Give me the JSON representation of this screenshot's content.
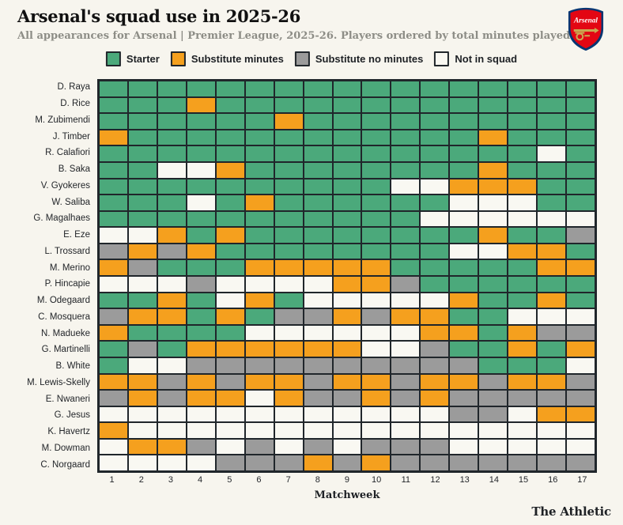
{
  "header": {
    "title": "Arsenal's squad use in 2025-26",
    "subtitle": "All appearances for Arsenal | Premier League, 2025-26. Players ordered by total minutes played"
  },
  "logo": {
    "icon": "arsenal-crest-icon",
    "text": "Arsenal"
  },
  "legend": [
    {
      "code": "S",
      "label": "Starter",
      "color": "#4BA97B"
    },
    {
      "code": "M",
      "label": "Substitute minutes",
      "color": "#F5A01E"
    },
    {
      "code": "N",
      "label": "Substitute no minutes",
      "color": "#9B9B9B"
    },
    {
      "code": "X",
      "label": "Not in squad",
      "color": "#F9F8F2"
    }
  ],
  "colors": {
    "starter": "#4BA97B",
    "substitute_minutes": "#F5A01E",
    "substitute_no_minutes": "#9B9B9B",
    "not_in_squad": "#F9F8F2",
    "grid_line": "#20262B",
    "background": "#F7F5EE",
    "title_text": "#111111",
    "subtitle_text": "#8D8D86"
  },
  "footer": {
    "brand": "The Athletic"
  },
  "chart_data": {
    "type": "heatmap",
    "title": "Arsenal's squad use in 2025-26",
    "subtitle": "All appearances for Arsenal | Premier League, 2025-26. Players ordered by total minutes played",
    "xlabel": "Matchweek",
    "x": [
      1,
      2,
      3,
      4,
      5,
      6,
      7,
      8,
      9,
      10,
      11,
      12,
      13,
      14,
      15,
      16,
      17
    ],
    "legend_position": "top",
    "status_codes": {
      "S": "Starter",
      "M": "Substitute minutes",
      "N": "Substitute no minutes",
      "X": "Not in squad"
    },
    "rows": [
      {
        "player": "D. Raya",
        "weeks": "SSSSSSSSSSSSSSSSS"
      },
      {
        "player": "D. Rice",
        "weeks": "SSSMSSSSSSSSSSSSS"
      },
      {
        "player": "M. Zubimendi",
        "weeks": "SSSSSSMSSSSSSSSSS"
      },
      {
        "player": "J. Timber",
        "weeks": "MSSSSSSSSSSSSMSSS"
      },
      {
        "player": "R. Calafiori",
        "weeks": "SSSSSSSSSSSSSSSXS"
      },
      {
        "player": "B. Saka",
        "weeks": "SSXXMSSSSSSSSMSSS"
      },
      {
        "player": "V. Gyokeres",
        "weeks": "SSSSSSSSSSXXMMMSS"
      },
      {
        "player": "W. Saliba",
        "weeks": "SSSXSMSSSSSSXXXSS"
      },
      {
        "player": "G. Magalhaes",
        "weeks": "SSSSSSSSSSSXXXXXX"
      },
      {
        "player": "E. Eze",
        "weeks": "XXMSMSSSSSSSSMSSN"
      },
      {
        "player": "L. Trossard",
        "weeks": "NMNMSSSSSSSSXXMMS"
      },
      {
        "player": "M. Merino",
        "weeks": "MNSSSMMMMMSSSSSMM"
      },
      {
        "player": "P. Hincapie",
        "weeks": "XXXNXXXXMMNSSSSSS"
      },
      {
        "player": "M. Odegaard",
        "weeks": "SSMSXMSXXXXXMSSMS"
      },
      {
        "player": "C. Mosquera",
        "weeks": "NMMSMSNNMNMMSSXXX"
      },
      {
        "player": "N. Madueke",
        "weeks": "MSSSSXXXXXXMMSMNN"
      },
      {
        "player": "G. Martinelli",
        "weeks": "SNSMMMMMMXXNSSMSM"
      },
      {
        "player": "B. White",
        "weeks": "SXXNNNNNNNNNNSSSX"
      },
      {
        "player": "M. Lewis-Skelly",
        "weeks": "MMNMNMMNMMNMMNMMN"
      },
      {
        "player": "E. Nwaneri",
        "weeks": "NMNMMXMNNMNMNNNNN"
      },
      {
        "player": "G. Jesus",
        "weeks": "XXXXXXXXXXXXNNXMM"
      },
      {
        "player": "K. Havertz",
        "weeks": "MXXXXXXXXXXXXXXXX"
      },
      {
        "player": "M. Dowman",
        "weeks": "XMMNXNXNXNNNXXXXX"
      },
      {
        "player": "C. Norgaard",
        "weeks": "XXXXNNNMNMNNNNNNN"
      }
    ]
  }
}
